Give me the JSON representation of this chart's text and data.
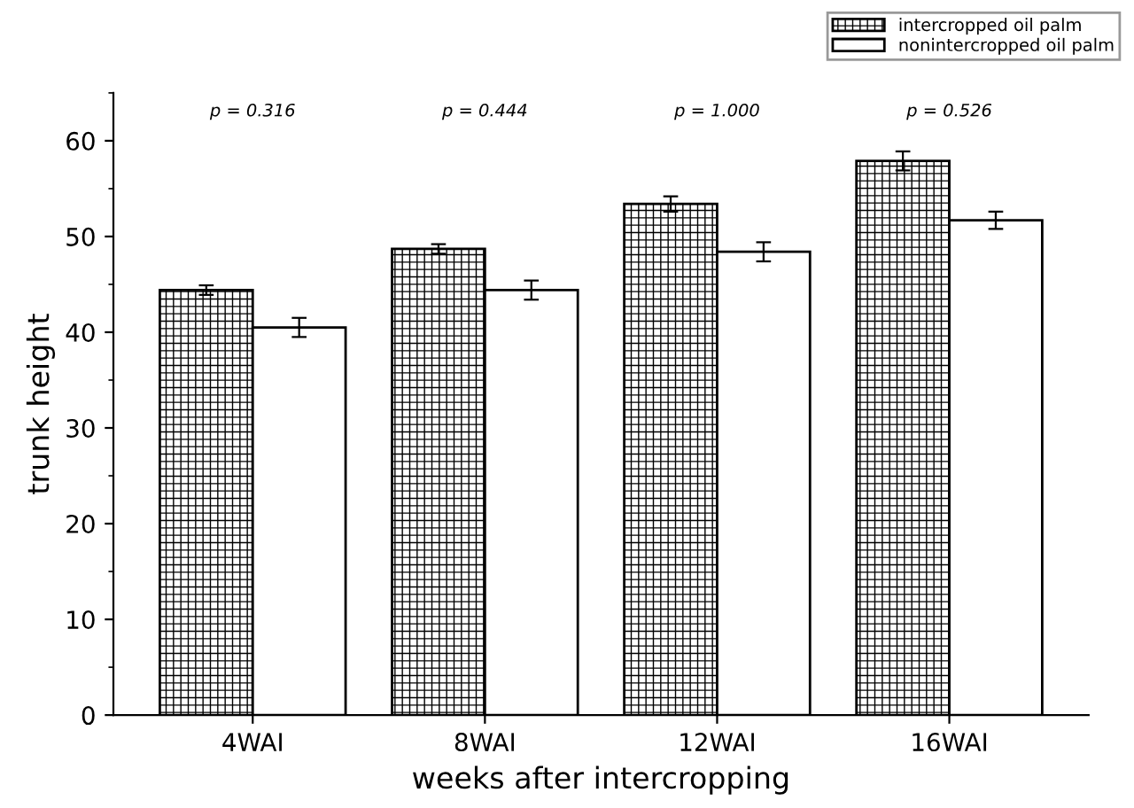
{
  "chart_data": {
    "type": "bar",
    "xlabel": "weeks after intercropping",
    "ylabel": "trunk height",
    "categories": [
      "4WAI",
      "8WAI",
      "12WAI",
      "16WAI"
    ],
    "series": [
      {
        "name": "intercropped oil palm",
        "color": "#000000",
        "values": [
          44.4,
          48.7,
          53.4,
          57.9
        ],
        "errors": [
          0.5,
          0.5,
          0.8,
          1.0
        ]
      },
      {
        "name": "nonintercropped oil palm",
        "color": "#ffffff",
        "values": [
          40.5,
          44.4,
          48.4,
          51.7
        ],
        "errors": [
          1.0,
          1.0,
          1.0,
          0.9
        ]
      }
    ],
    "ylim": [
      0,
      65
    ],
    "yticks": [
      0,
      10,
      20,
      30,
      40,
      50,
      60
    ],
    "grid": false,
    "legend": "top right",
    "annotations": [
      "p = 0.316",
      "p = 0.444",
      "p = 1.000",
      "p = 0.526"
    ]
  }
}
